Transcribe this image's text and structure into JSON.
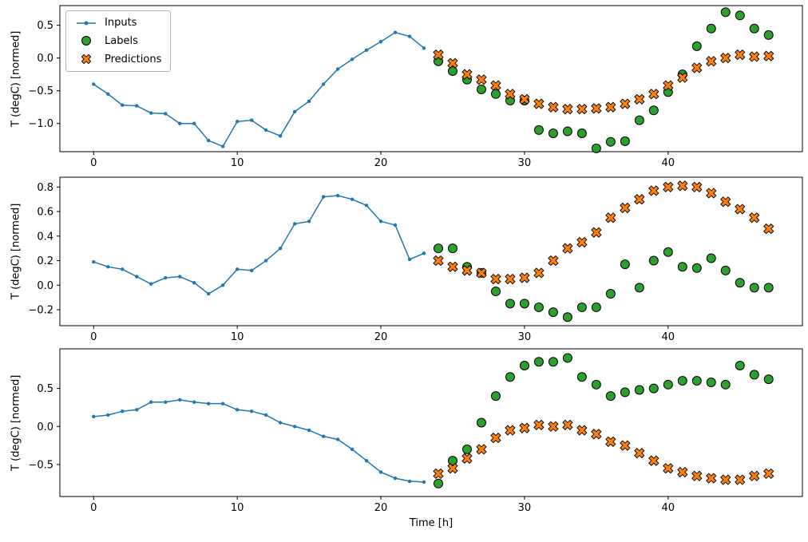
{
  "figure": {
    "background": "#ffffff"
  },
  "colors": {
    "inputs": "#1f77b4",
    "labels": "#2ca02c",
    "predictions": "#ff7f0e",
    "marker_edge": "#000000",
    "axis": "#000000"
  },
  "legend": {
    "items": [
      {
        "label": "Inputs",
        "marker": "line-dot",
        "color": "#1f77b4"
      },
      {
        "label": "Labels",
        "marker": "circle",
        "color": "#2ca02c"
      },
      {
        "label": "Predictions",
        "marker": "x",
        "color": "#ff7f0e"
      }
    ]
  },
  "chart_data": [
    {
      "type": "line",
      "title": "",
      "xlabel": "",
      "ylabel": "T (degC) [normed]",
      "xlim": [
        -2.35,
        49.35
      ],
      "ylim": [
        -1.43,
        0.8
      ],
      "xticks": [
        0,
        10,
        20,
        30,
        40
      ],
      "yticks": [
        0.5,
        0.0,
        -0.5,
        -1.0
      ],
      "grid": false,
      "legend_position": "upper-left",
      "series": [
        {
          "name": "Inputs",
          "style": "line",
          "x": [
            0,
            1,
            2,
            3,
            4,
            5,
            6,
            7,
            8,
            9,
            10,
            11,
            12,
            13,
            14,
            15,
            16,
            17,
            18,
            19,
            20,
            21,
            22,
            23
          ],
          "values": [
            -0.4,
            -0.55,
            -0.72,
            -0.73,
            -0.84,
            -0.85,
            -1.0,
            -1.0,
            -1.26,
            -1.35,
            -0.97,
            -0.95,
            -1.1,
            -1.19,
            -0.82,
            -0.66,
            -0.4,
            -0.17,
            -0.02,
            0.12,
            0.25,
            0.39,
            0.33,
            0.15
          ]
        },
        {
          "name": "Labels",
          "style": "circle",
          "x": [
            24,
            25,
            26,
            27,
            28,
            29,
            30,
            31,
            32,
            33,
            34,
            35,
            36,
            37,
            38,
            39,
            40,
            41,
            42,
            43,
            44,
            45,
            46,
            47
          ],
          "values": [
            -0.05,
            -0.2,
            -0.33,
            -0.48,
            -0.55,
            -0.65,
            -0.65,
            -1.1,
            -1.15,
            -1.12,
            -1.15,
            -1.38,
            -1.28,
            -1.27,
            -0.95,
            -0.8,
            -0.52,
            -0.25,
            0.18,
            0.45,
            0.7,
            0.65,
            0.45,
            0.35
          ]
        },
        {
          "name": "Predictions",
          "style": "x",
          "x": [
            24,
            25,
            26,
            27,
            28,
            29,
            30,
            31,
            32,
            33,
            34,
            35,
            36,
            37,
            38,
            39,
            40,
            41,
            42,
            43,
            44,
            45,
            46,
            47
          ],
          "values": [
            0.05,
            -0.08,
            -0.25,
            -0.33,
            -0.42,
            -0.55,
            -0.63,
            -0.7,
            -0.75,
            -0.78,
            -0.78,
            -0.77,
            -0.75,
            -0.7,
            -0.63,
            -0.55,
            -0.42,
            -0.3,
            -0.15,
            -0.05,
            0.0,
            0.05,
            0.02,
            0.03
          ]
        }
      ]
    },
    {
      "type": "line",
      "title": "",
      "xlabel": "",
      "ylabel": "T (degC) [normed]",
      "xlim": [
        -2.35,
        49.35
      ],
      "ylim": [
        -0.33,
        0.88
      ],
      "xticks": [
        0,
        10,
        20,
        30,
        40
      ],
      "yticks": [
        0.8,
        0.6,
        0.4,
        0.2,
        0.0,
        -0.2
      ],
      "grid": false,
      "series": [
        {
          "name": "Inputs",
          "style": "line",
          "x": [
            0,
            1,
            2,
            3,
            4,
            5,
            6,
            7,
            8,
            9,
            10,
            11,
            12,
            13,
            14,
            15,
            16,
            17,
            18,
            19,
            20,
            21,
            22,
            23
          ],
          "values": [
            0.19,
            0.15,
            0.13,
            0.07,
            0.01,
            0.06,
            0.07,
            0.02,
            -0.07,
            0.0,
            0.13,
            0.12,
            0.2,
            0.3,
            0.5,
            0.52,
            0.72,
            0.73,
            0.7,
            0.65,
            0.52,
            0.49,
            0.21,
            0.26
          ]
        },
        {
          "name": "Labels",
          "style": "circle",
          "x": [
            24,
            25,
            26,
            27,
            28,
            29,
            30,
            31,
            32,
            33,
            34,
            35,
            36,
            37,
            38,
            39,
            40,
            41,
            42,
            43,
            44,
            45,
            46,
            47
          ],
          "values": [
            0.3,
            0.3,
            0.15,
            0.1,
            -0.05,
            -0.15,
            -0.15,
            -0.18,
            -0.22,
            -0.26,
            -0.18,
            -0.18,
            -0.07,
            0.17,
            -0.02,
            0.2,
            0.27,
            0.15,
            0.14,
            0.22,
            0.12,
            0.02,
            -0.02,
            -0.02
          ]
        },
        {
          "name": "Predictions",
          "style": "x",
          "x": [
            24,
            25,
            26,
            27,
            28,
            29,
            30,
            31,
            32,
            33,
            34,
            35,
            36,
            37,
            38,
            39,
            40,
            41,
            42,
            43,
            44,
            45,
            46,
            47
          ],
          "values": [
            0.2,
            0.15,
            0.12,
            0.1,
            0.05,
            0.05,
            0.06,
            0.1,
            0.2,
            0.3,
            0.35,
            0.43,
            0.55,
            0.63,
            0.7,
            0.77,
            0.8,
            0.81,
            0.8,
            0.75,
            0.68,
            0.62,
            0.55,
            0.46
          ]
        }
      ]
    },
    {
      "type": "line",
      "title": "",
      "xlabel": "Time [h]",
      "ylabel": "T (degC) [normed]",
      "xlim": [
        -2.35,
        49.35
      ],
      "ylim": [
        -0.92,
        1.02
      ],
      "xticks": [
        0,
        10,
        20,
        30,
        40
      ],
      "yticks": [
        0.5,
        0.0,
        -0.5
      ],
      "grid": false,
      "series": [
        {
          "name": "Inputs",
          "style": "line",
          "x": [
            0,
            1,
            2,
            3,
            4,
            5,
            6,
            7,
            8,
            9,
            10,
            11,
            12,
            13,
            14,
            15,
            16,
            17,
            18,
            19,
            20,
            21,
            22,
            23
          ],
          "values": [
            0.13,
            0.15,
            0.2,
            0.22,
            0.32,
            0.32,
            0.35,
            0.32,
            0.3,
            0.3,
            0.22,
            0.2,
            0.15,
            0.05,
            0.0,
            -0.05,
            -0.13,
            -0.17,
            -0.3,
            -0.45,
            -0.6,
            -0.68,
            -0.72,
            -0.73
          ]
        },
        {
          "name": "Labels",
          "style": "circle",
          "x": [
            24,
            25,
            26,
            27,
            28,
            29,
            30,
            31,
            32,
            33,
            34,
            35,
            36,
            37,
            38,
            39,
            40,
            41,
            42,
            43,
            44,
            45,
            46,
            47
          ],
          "values": [
            -0.75,
            -0.45,
            -0.3,
            0.05,
            0.4,
            0.65,
            0.8,
            0.85,
            0.85,
            0.9,
            0.65,
            0.55,
            0.4,
            0.45,
            0.48,
            0.5,
            0.55,
            0.6,
            0.6,
            0.58,
            0.55,
            0.8,
            0.68,
            0.62
          ]
        },
        {
          "name": "Predictions",
          "style": "x",
          "x": [
            24,
            25,
            26,
            27,
            28,
            29,
            30,
            31,
            32,
            33,
            34,
            35,
            36,
            37,
            38,
            39,
            40,
            41,
            42,
            43,
            44,
            45,
            46,
            47
          ],
          "values": [
            -0.62,
            -0.55,
            -0.42,
            -0.3,
            -0.15,
            -0.05,
            -0.02,
            0.02,
            0.0,
            0.02,
            -0.05,
            -0.1,
            -0.2,
            -0.25,
            -0.35,
            -0.45,
            -0.55,
            -0.6,
            -0.65,
            -0.68,
            -0.7,
            -0.7,
            -0.65,
            -0.62
          ]
        }
      ]
    }
  ]
}
